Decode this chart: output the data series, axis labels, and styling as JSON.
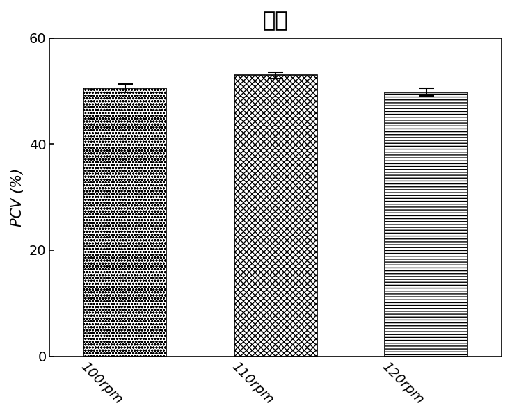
{
  "title": "生长",
  "categories": [
    "100rpm",
    "110rpm",
    "120rpm"
  ],
  "values": [
    50.5,
    53.0,
    49.8
  ],
  "errors": [
    0.8,
    0.6,
    0.7
  ],
  "ylabel": "PCV (%)",
  "ylim": [
    0,
    60
  ],
  "yticks": [
    0,
    20,
    40,
    60
  ],
  "title_fontsize": 22,
  "axis_fontsize": 15,
  "tick_fontsize": 14,
  "bar_width": 0.55,
  "background_color": "#ffffff",
  "hatches": [
    "o",
    "x",
    "-"
  ],
  "bar_face_color": "#ffffff",
  "bar_edge_color": "#000000",
  "error_color": "#000000",
  "cap_color": "#444444"
}
